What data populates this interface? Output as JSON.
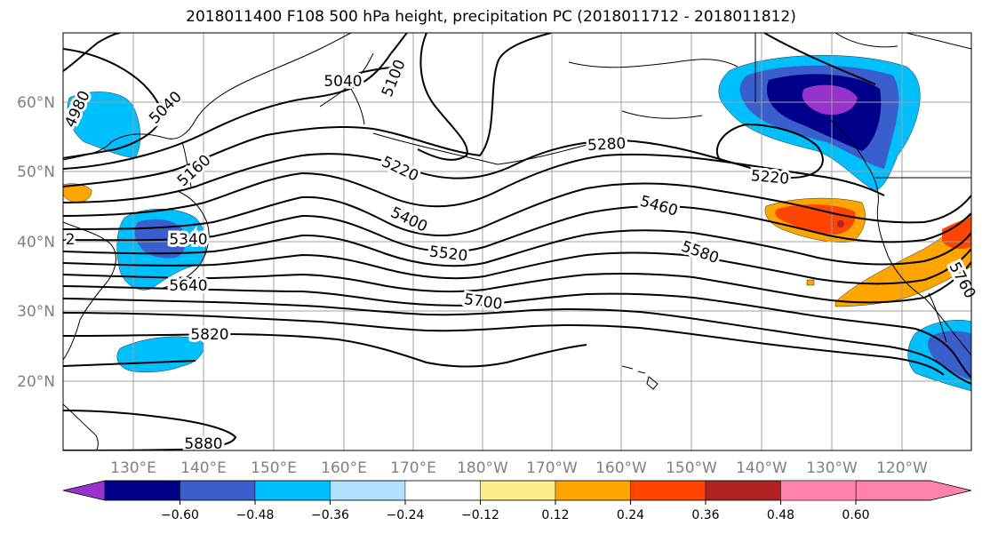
{
  "title": "2018011400 F108 500 hPa height, precipitation PC (2018011712 - 2018011812)",
  "map": {
    "lon_labels": [
      "130°E",
      "140°E",
      "150°E",
      "160°E",
      "170°E",
      "180°W",
      "170°W",
      "160°W",
      "150°W",
      "140°W",
      "130°W",
      "120°W"
    ],
    "lat_labels": [
      "60°N",
      "50°N",
      "40°N",
      "30°N",
      "20°N"
    ],
    "contour_labels": [
      {
        "id": "4980",
        "text": "4980"
      },
      {
        "id": "5040a",
        "text": "5040"
      },
      {
        "id": "5040b",
        "text": "5040"
      },
      {
        "id": "5100",
        "text": "5100"
      },
      {
        "id": "5160",
        "text": "5160"
      },
      {
        "id": "5220a",
        "text": "5220"
      },
      {
        "id": "5220b",
        "text": "5220"
      },
      {
        "id": "5280",
        "text": "5280"
      },
      {
        "id": "5340",
        "text": "5340"
      },
      {
        "id": "5400",
        "text": "5400"
      },
      {
        "id": "5460",
        "text": "5460"
      },
      {
        "id": "5520",
        "text": "5520"
      },
      {
        "id": "5580",
        "text": "5580"
      },
      {
        "id": "5640",
        "text": "5640"
      },
      {
        "id": "5700",
        "text": "5700"
      },
      {
        "id": "5760",
        "text": "5760"
      },
      {
        "id": "5820",
        "text": "5820"
      },
      {
        "id": "5880",
        "text": "5880"
      },
      {
        "id": "edge2",
        "text": "2"
      }
    ]
  },
  "colorbar": {
    "tick_labels": [
      "−0.60",
      "−0.48",
      "−0.36",
      "−0.24",
      "−0.12",
      "0.12",
      "0.24",
      "0.36",
      "0.48",
      "0.60"
    ],
    "colors": [
      "#9932cc",
      "#00008b",
      "#3a5fcd",
      "#00bfff",
      "#b0e2ff",
      "#ffffff",
      "#ffec8b",
      "#ffa500",
      "#ff4500",
      "#b22222",
      "#ff82ab"
    ]
  }
}
